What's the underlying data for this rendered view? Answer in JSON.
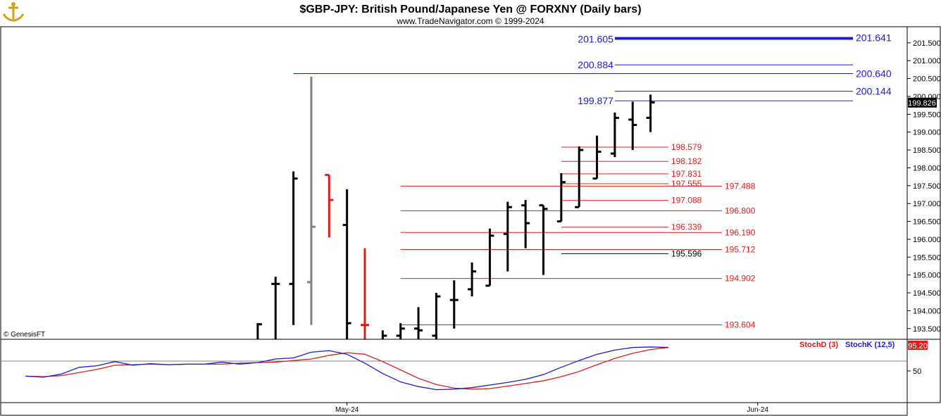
{
  "header": {
    "title": "$GBP-JPY:  British Pound/Japanese Yen @ FORXNY  (Daily bars)",
    "subtitle": "www.TradeNavigator.com © 1999-2024",
    "copyright": "© GenesisFT"
  },
  "chart_data": [
    {
      "type": "ohlc",
      "ylim": [
        193.2,
        201.95
      ],
      "y_ticks": [
        "201.500",
        "201.000",
        "200.500",
        "200.000",
        "199.500",
        "199.000",
        "198.500",
        "198.000",
        "197.500",
        "197.000",
        "196.500",
        "196.000",
        "195.500",
        "195.000",
        "194.500",
        "194.000",
        "193.500"
      ],
      "x_tick_labels": [
        {
          "label": "May-24",
          "bar": 19
        },
        {
          "label": "Jun-24",
          "bar": 42
        }
      ],
      "last_price": "199.826",
      "bars": [
        {
          "i": 14,
          "o": 192.9,
          "h": 193.65,
          "l": 192.8,
          "c": 193.62,
          "color": "#000000"
        },
        {
          "i": 15,
          "o": 194.75,
          "h": 194.95,
          "l": 192.9,
          "c": 194.75,
          "color": "#000000"
        },
        {
          "i": 16,
          "o": 194.75,
          "h": 197.9,
          "l": 193.6,
          "c": 197.7,
          "color": "#000000"
        },
        {
          "i": 17,
          "o": 194.8,
          "h": 200.55,
          "l": 193.6,
          "c": 196.35,
          "color": "#808080"
        },
        {
          "i": 18,
          "o": 197.8,
          "h": 197.8,
          "l": 196.05,
          "c": 197.1,
          "color": "#e01b1b"
        },
        {
          "i": 19,
          "o": 196.4,
          "h": 197.4,
          "l": 192.9,
          "c": 193.65,
          "color": "#000000"
        },
        {
          "i": 20,
          "o": 193.6,
          "h": 195.75,
          "l": 192.9,
          "c": 193.6,
          "color": "#e01b1b"
        },
        {
          "i": 21,
          "o": 193.1,
          "h": 193.45,
          "l": 192.9,
          "c": 193.3,
          "color": "#000000"
        },
        {
          "i": 22,
          "o": 193.3,
          "h": 193.65,
          "l": 193.0,
          "c": 193.5,
          "color": "#000000"
        },
        {
          "i": 23,
          "o": 193.5,
          "h": 194.1,
          "l": 193.2,
          "c": 193.45,
          "color": "#000000"
        },
        {
          "i": 24,
          "o": 193.3,
          "h": 194.5,
          "l": 193.2,
          "c": 194.4,
          "color": "#000000"
        },
        {
          "i": 25,
          "o": 194.3,
          "h": 194.85,
          "l": 193.5,
          "c": 194.3,
          "color": "#000000"
        },
        {
          "i": 26,
          "o": 194.6,
          "h": 195.35,
          "l": 194.4,
          "c": 195.1,
          "color": "#000000"
        },
        {
          "i": 27,
          "o": 194.7,
          "h": 196.3,
          "l": 194.7,
          "c": 196.1,
          "color": "#000000"
        },
        {
          "i": 28,
          "o": 196.15,
          "h": 197.05,
          "l": 195.1,
          "c": 196.9,
          "color": "#000000"
        },
        {
          "i": 29,
          "o": 196.95,
          "h": 197.1,
          "l": 195.75,
          "c": 196.45,
          "color": "#000000"
        },
        {
          "i": 30,
          "o": 196.95,
          "h": 196.95,
          "l": 195.0,
          "c": 196.85,
          "color": "#000000"
        },
        {
          "i": 31,
          "o": 196.5,
          "h": 197.85,
          "l": 196.5,
          "c": 197.6,
          "color": "#000000"
        },
        {
          "i": 32,
          "o": 196.9,
          "h": 198.6,
          "l": 196.9,
          "c": 198.5,
          "color": "#000000"
        },
        {
          "i": 33,
          "o": 197.7,
          "h": 198.9,
          "l": 197.7,
          "c": 198.45,
          "color": "#000000"
        },
        {
          "i": 34,
          "o": 198.4,
          "h": 199.55,
          "l": 198.3,
          "c": 199.4,
          "color": "#000000"
        },
        {
          "i": 35,
          "o": 199.35,
          "h": 199.85,
          "l": 198.5,
          "c": 199.2,
          "color": "#000000"
        },
        {
          "i": 36,
          "o": 199.4,
          "h": 200.05,
          "l": 199.0,
          "c": 199.83,
          "color": "#000000"
        }
      ],
      "levels": [
        {
          "value": 201.641,
          "label": "201.641",
          "color": "#1a1ad6",
          "x_from": 34,
          "x_to": 48,
          "label_at": "right-end"
        },
        {
          "value": 201.605,
          "label": "201.605",
          "color": "#1a1ad6",
          "x_from": 34,
          "x_to": 48,
          "label_at": "left"
        },
        {
          "value": 200.884,
          "label": "200.884",
          "color": "#1a1ad6",
          "x_from": 34,
          "x_to": 48,
          "label_at": "left"
        },
        {
          "value": 200.64,
          "label": "200.640",
          "color": "#1a1ad6",
          "x_from": 16,
          "x_to": 48,
          "label_at": "right-end"
        },
        {
          "value": 200.144,
          "label": "200.144",
          "color": "#1a1ad6",
          "x_from": 34,
          "x_to": 48,
          "label_at": "right-end"
        },
        {
          "value": 199.877,
          "label": "199.877",
          "color": "#1a1ad6",
          "x_from": 34,
          "x_to": 48,
          "label_at": "left"
        },
        {
          "value": 198.579,
          "label": "198.579",
          "color": "#e01b1b",
          "x_from": 31,
          "x_to": 37,
          "label_at": "right-end"
        },
        {
          "value": 198.182,
          "label": "198.182",
          "color": "#e01b1b",
          "x_from": 31,
          "x_to": 37,
          "label_at": "right-end"
        },
        {
          "value": 197.831,
          "label": "197.831",
          "color": "#e01b1b",
          "x_from": 31,
          "x_to": 37,
          "label_at": "right-end"
        },
        {
          "value": 197.555,
          "label": "197.555",
          "color": "#e01b1b",
          "x_from": 31,
          "x_to": 37,
          "label_at": "right-end"
        },
        {
          "value": 197.488,
          "label": "197.488",
          "color": "#e01b1b",
          "x_from": 22,
          "x_to": 40,
          "label_at": "right-end"
        },
        {
          "value": 197.088,
          "label": "197.088",
          "color": "#e01b1b",
          "x_from": 31,
          "x_to": 37,
          "label_at": "right-end"
        },
        {
          "value": 196.8,
          "label": "196.800",
          "color": "#e01b1b",
          "x_from": 22,
          "x_to": 40,
          "label_at": "right-end"
        },
        {
          "value": 196.339,
          "label": "196.339",
          "color": "#e01b1b",
          "x_from": 31,
          "x_to": 37,
          "label_at": "right-end"
        },
        {
          "value": 196.19,
          "label": "196.190",
          "color": "#e01b1b",
          "x_from": 22,
          "x_to": 40,
          "label_at": "right-end"
        },
        {
          "value": 195.712,
          "label": "195.712",
          "color": "#e01b1b",
          "x_from": 22,
          "x_to": 40,
          "label_at": "right-end"
        },
        {
          "value": 195.596,
          "label": "195.596",
          "color": "#000000",
          "x_from": 31,
          "x_to": 37,
          "label_at": "right-end"
        },
        {
          "value": 194.902,
          "label": "194.902",
          "color": "#e01b1b",
          "x_from": 22,
          "x_to": 40,
          "label_at": "right-end"
        },
        {
          "value": 193.604,
          "label": "193.604",
          "color": "#e01b1b",
          "x_from": 22,
          "x_to": 40,
          "label_at": "right-end"
        }
      ]
    },
    {
      "type": "line",
      "ylim": [
        0,
        100
      ],
      "y_ticks": [
        "50"
      ],
      "last_value": "95.20",
      "series": [
        {
          "name": "StochD (3)",
          "color": "#e01b1b",
          "x": [
            1,
            2,
            3,
            4,
            5,
            6,
            7,
            8,
            9,
            10,
            11,
            12,
            13,
            14,
            15,
            16,
            17,
            18,
            19,
            20,
            21,
            22,
            23,
            24,
            25,
            26,
            27,
            28,
            29,
            30,
            31,
            32,
            33,
            34,
            35,
            36,
            37
          ],
          "values": [
            40,
            39,
            41,
            47,
            53,
            61,
            62,
            63,
            62,
            63,
            63,
            63,
            65,
            66,
            67,
            70,
            73,
            80,
            85,
            82,
            68,
            52,
            36,
            24,
            17,
            15,
            16,
            21,
            26,
            31,
            39,
            49,
            62,
            74,
            84,
            91,
            95.2
          ]
        },
        {
          "name": "StochK (12,5)",
          "color": "#1a1ad6",
          "x": [
            1,
            2,
            3,
            4,
            5,
            6,
            7,
            8,
            9,
            10,
            11,
            12,
            13,
            14,
            15,
            16,
            17,
            18,
            19,
            20,
            21,
            22,
            23,
            24,
            25,
            26,
            27,
            28,
            29,
            30,
            31,
            32,
            33,
            34,
            35,
            36,
            37
          ],
          "values": [
            40,
            38,
            44,
            57,
            60,
            68,
            61,
            64,
            62,
            63,
            63,
            67,
            63,
            66,
            73,
            75,
            86,
            89,
            82,
            65,
            45,
            29,
            20,
            14,
            15,
            18,
            23,
            28,
            34,
            43,
            57,
            70,
            82,
            90,
            95,
            96,
            95.2
          ]
        }
      ]
    }
  ]
}
